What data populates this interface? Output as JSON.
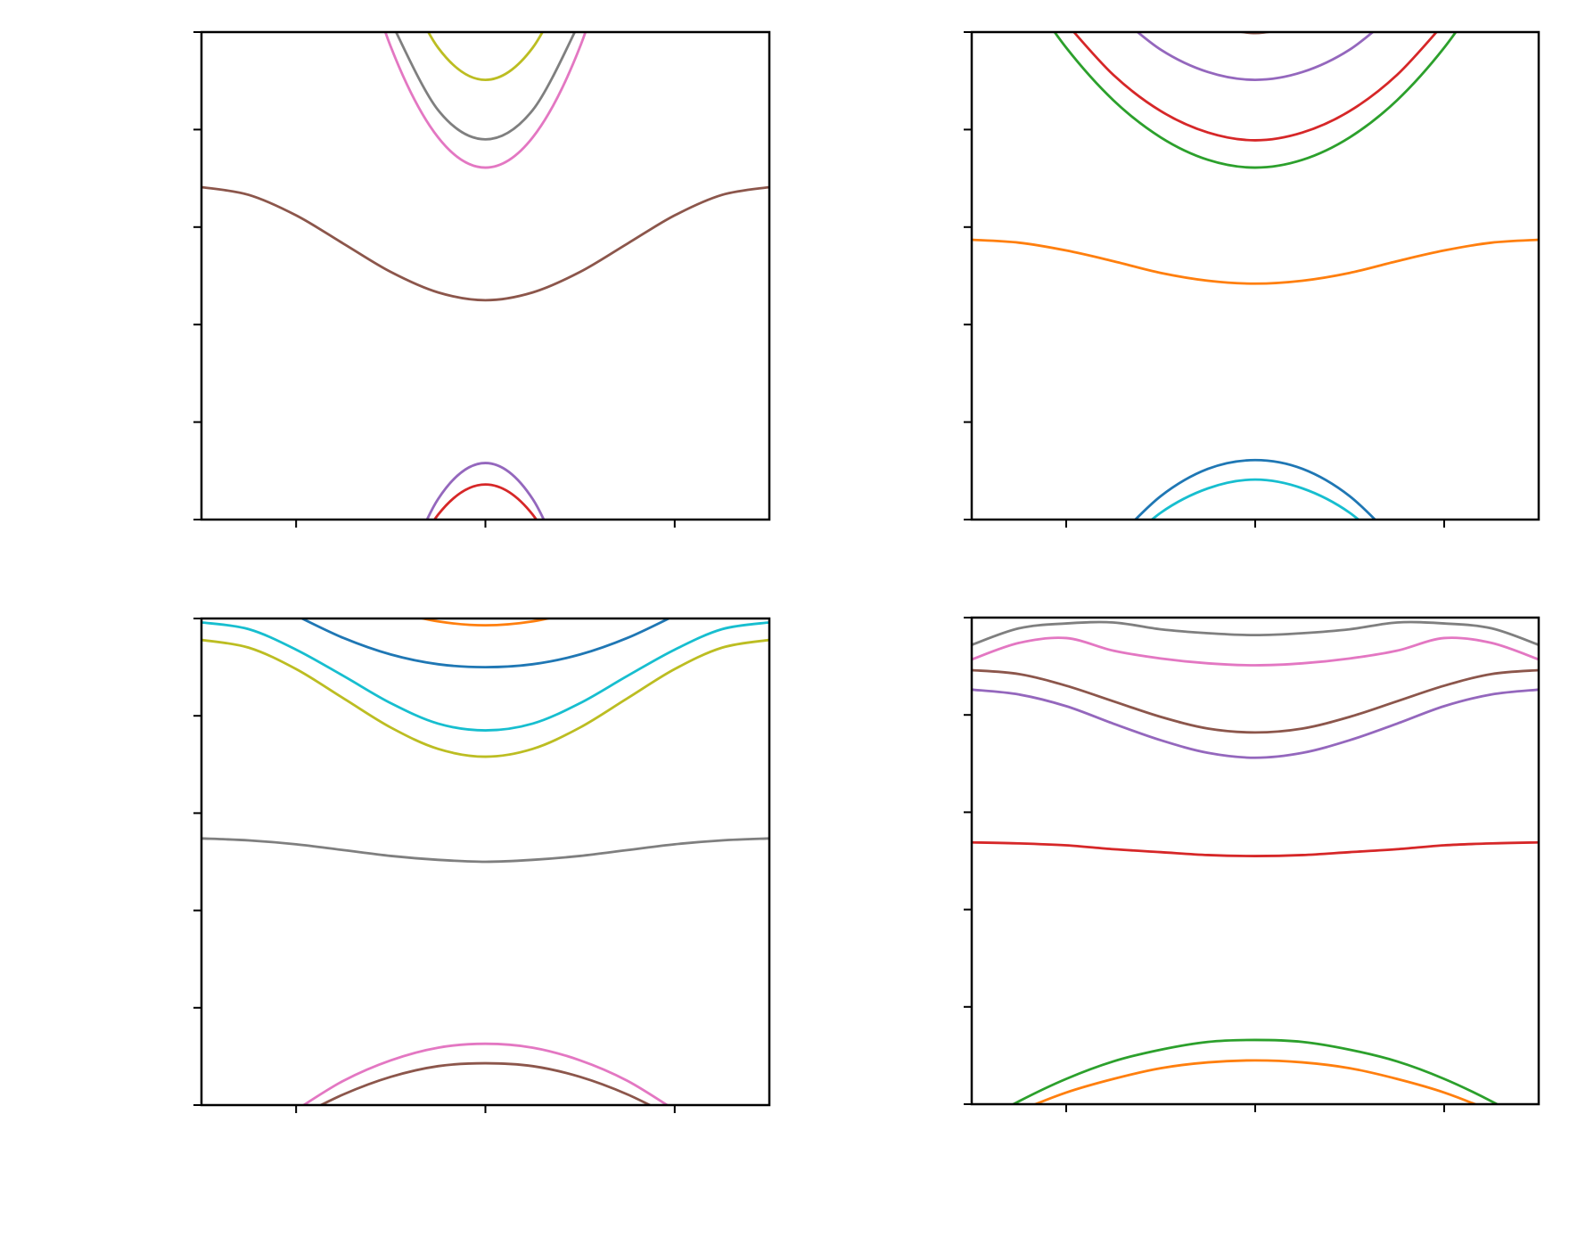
{
  "chart_data": [
    {
      "type": "line",
      "x": [
        -1.5,
        -1.25,
        -1,
        -0.75,
        -0.5,
        -0.25,
        0,
        0.25,
        0.5,
        0.75,
        1,
        1.25,
        1.5
      ],
      "xlim": [
        -1.5,
        1.5
      ],
      "xticks": [
        -1,
        0,
        1
      ],
      "ylim": [
        0,
        5
      ],
      "yticks": [
        0,
        1,
        2,
        3,
        4,
        5
      ],
      "series": [
        {
          "color": "#8c564b",
          "values": [
            3.41,
            3.33,
            3.12,
            2.83,
            2.54,
            2.33,
            2.25,
            2.33,
            2.54,
            2.83,
            3.12,
            3.33,
            3.41
          ]
        },
        {
          "color": "#e377c2",
          "values": [
            null,
            null,
            null,
            6.39,
            4.85,
            3.92,
            3.61,
            3.92,
            4.85,
            6.39,
            null,
            null,
            null
          ]
        },
        {
          "color": "#7f7f7f",
          "values": [
            null,
            null,
            null,
            null,
            5.11,
            4.2,
            3.9,
            4.2,
            5.11,
            null,
            null,
            null,
            null
          ]
        },
        {
          "color": "#bcbd22",
          "values": [
            null,
            null,
            null,
            null,
            5.81,
            4.84,
            4.51,
            4.84,
            5.81,
            null,
            null,
            null,
            null
          ]
        },
        {
          "color": "#9467bd",
          "values": [
            null,
            null,
            null,
            null,
            -0.9,
            0.21,
            0.58,
            0.21,
            -0.9,
            null,
            null,
            null,
            null
          ]
        },
        {
          "color": "#d62728",
          "values": [
            null,
            null,
            null,
            null,
            -0.87,
            0.05,
            0.36,
            0.05,
            -0.87,
            null,
            null,
            null,
            null
          ]
        }
      ]
    },
    {
      "type": "line",
      "x": [
        -1.5,
        -1.25,
        -1,
        -0.75,
        -0.5,
        -0.25,
        0,
        0.25,
        0.5,
        0.75,
        1,
        1.25,
        1.5
      ],
      "xlim": [
        -1.5,
        1.5
      ],
      "xticks": [
        -1,
        0,
        1
      ],
      "ylim": [
        0,
        5
      ],
      "yticks": [
        0,
        1,
        2,
        3,
        4,
        5
      ],
      "series": [
        {
          "color": "#ff7f0e",
          "values": [
            2.87,
            2.84,
            2.76,
            2.65,
            2.53,
            2.45,
            2.42,
            2.45,
            2.53,
            2.65,
            2.76,
            2.84,
            2.87
          ]
        },
        {
          "color": "#2ca02c",
          "values": [
            null,
            5.53,
            4.84,
            4.3,
            3.92,
            3.69,
            3.61,
            3.69,
            3.92,
            4.3,
            4.84,
            5.53,
            null
          ]
        },
        {
          "color": "#d62728",
          "values": [
            null,
            null,
            5.09,
            4.56,
            4.19,
            3.97,
            3.89,
            3.97,
            4.19,
            4.56,
            5.09,
            null,
            null
          ]
        },
        {
          "color": "#9467bd",
          "values": [
            null,
            null,
            null,
            5.21,
            4.82,
            4.59,
            4.51,
            4.59,
            4.82,
            5.21,
            null,
            null,
            null
          ]
        },
        {
          "color": "#8c564b",
          "values": [
            null,
            null,
            null,
            null,
            null,
            5.07,
            4.99,
            5.07,
            null,
            null,
            null,
            null,
            null
          ]
        },
        {
          "color": "#1f77b4",
          "values": [
            null,
            null,
            null,
            -0.23,
            0.24,
            0.52,
            0.61,
            0.52,
            0.24,
            -0.23,
            null,
            null,
            null
          ]
        },
        {
          "color": "#17becf",
          "values": [
            null,
            null,
            null,
            -0.36,
            0.07,
            0.32,
            0.41,
            0.32,
            0.07,
            -0.36,
            null,
            null,
            null
          ]
        }
      ]
    },
    {
      "type": "line",
      "x": [
        -1.5,
        -1.25,
        -1,
        -0.75,
        -0.5,
        -0.25,
        0,
        0.25,
        0.5,
        0.75,
        1,
        1.25,
        1.5
      ],
      "xlim": [
        -1.5,
        1.5
      ],
      "xticks": [
        -1,
        0,
        1
      ],
      "ylim": [
        0,
        5
      ],
      "yticks": [
        0,
        1,
        2,
        3,
        4,
        5
      ],
      "series": [
        {
          "color": "#ff7f0e",
          "values": [
            null,
            null,
            null,
            null,
            5.08,
            4.97,
            4.93,
            4.97,
            5.08,
            null,
            null,
            null,
            null
          ]
        },
        {
          "color": "#1f77b4",
          "values": [
            null,
            null,
            5.03,
            4.8,
            4.63,
            4.53,
            4.5,
            4.53,
            4.63,
            4.8,
            5.03,
            null,
            null
          ]
        },
        {
          "color": "#17becf",
          "values": [
            4.96,
            4.89,
            4.68,
            4.41,
            4.13,
            3.92,
            3.85,
            3.92,
            4.13,
            4.41,
            4.68,
            4.89,
            4.96
          ]
        },
        {
          "color": "#bcbd22",
          "values": [
            4.78,
            4.7,
            4.48,
            4.18,
            3.88,
            3.66,
            3.58,
            3.66,
            3.88,
            4.18,
            4.48,
            4.7,
            4.78
          ]
        },
        {
          "color": "#7f7f7f",
          "values": [
            2.74,
            2.72,
            2.68,
            2.62,
            2.56,
            2.52,
            2.5,
            2.52,
            2.56,
            2.62,
            2.68,
            2.72,
            2.74
          ]
        },
        {
          "color": "#e377c2",
          "values": [
            null,
            null,
            -0.05,
            0.25,
            0.46,
            0.59,
            0.63,
            0.59,
            0.46,
            0.25,
            -0.05,
            null,
            null
          ]
        },
        {
          "color": "#8c564b",
          "values": [
            null,
            null,
            -0.13,
            0.11,
            0.29,
            0.4,
            0.43,
            0.4,
            0.29,
            0.11,
            -0.13,
            null,
            null
          ]
        }
      ]
    },
    {
      "type": "line",
      "x": [
        -1.5,
        -1.25,
        -1,
        -0.75,
        -0.5,
        -0.25,
        0,
        0.25,
        0.5,
        0.75,
        1,
        1.25,
        1.5
      ],
      "xlim": [
        -1.5,
        1.5
      ],
      "xticks": [
        -1,
        0,
        1
      ],
      "ylim": [
        0,
        5
      ],
      "yticks": [
        0,
        1,
        2,
        3,
        4,
        5
      ],
      "series": [
        {
          "color": "#d62728",
          "values": [
            2.69,
            2.68,
            2.66,
            2.62,
            2.59,
            2.56,
            2.55,
            2.56,
            2.59,
            2.62,
            2.66,
            2.68,
            2.69
          ]
        },
        {
          "color": "#9467bd",
          "values": [
            4.26,
            4.21,
            4.09,
            3.91,
            3.74,
            3.61,
            3.56,
            3.61,
            3.74,
            3.91,
            4.09,
            4.21,
            4.26
          ]
        },
        {
          "color": "#8c564b",
          "values": [
            4.46,
            4.42,
            4.3,
            4.14,
            3.98,
            3.86,
            3.82,
            3.86,
            3.98,
            4.14,
            4.3,
            4.42,
            4.46
          ]
        },
        {
          "color": "#e377c2",
          "values": [
            4.57,
            4.74,
            4.79,
            4.66,
            4.58,
            4.53,
            4.51,
            4.53,
            4.58,
            4.66,
            4.79,
            4.74,
            4.57
          ]
        },
        {
          "color": "#7f7f7f",
          "values": [
            4.72,
            4.89,
            4.94,
            4.95,
            4.88,
            4.84,
            4.82,
            4.84,
            4.88,
            4.95,
            4.94,
            4.89,
            4.72
          ]
        },
        {
          "color": "#2ca02c",
          "values": [
            -0.24,
            0.03,
            0.26,
            0.44,
            0.56,
            0.64,
            0.66,
            0.64,
            0.56,
            0.44,
            0.26,
            0.03,
            -0.24
          ]
        },
        {
          "color": "#ff7f0e",
          "values": [
            -0.29,
            -0.07,
            0.12,
            0.26,
            0.37,
            0.43,
            0.45,
            0.43,
            0.37,
            0.26,
            0.12,
            -0.07,
            -0.29
          ]
        }
      ]
    }
  ]
}
